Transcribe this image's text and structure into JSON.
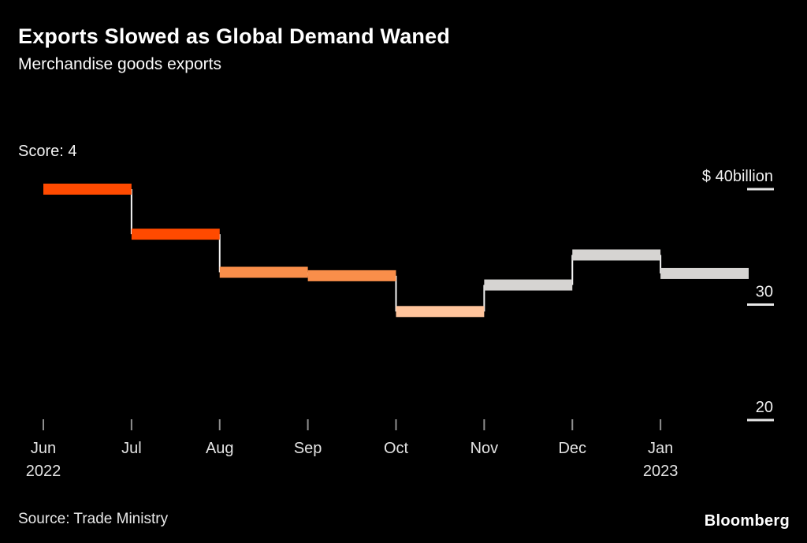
{
  "annotations": {
    "score": "Score: 4"
  },
  "footer": {
    "source": "Source: Trade Ministry"
  },
  "branding": {
    "logo_text": "Bloomberg"
  },
  "chart_data": {
    "type": "line",
    "subtype": "step-after",
    "title": "Exports Slowed as Global Demand Waned",
    "subtitle": "Merchandise goods exports",
    "unit": "$ billion",
    "categories": [
      "Jun 2022",
      "Jul",
      "Aug",
      "Sep",
      "Oct",
      "Nov",
      "Dec",
      "Jan 2023"
    ],
    "x_tick_labels": [
      {
        "label": "Jun",
        "sublabel": "2022"
      },
      {
        "label": "Jul"
      },
      {
        "label": "Aug"
      },
      {
        "label": "Sep"
      },
      {
        "label": "Oct"
      },
      {
        "label": "Nov"
      },
      {
        "label": "Dec"
      },
      {
        "label": "Jan",
        "sublabel": "2023"
      }
    ],
    "values": [
      40.0,
      36.1,
      32.8,
      32.5,
      29.4,
      31.7,
      34.3,
      32.7
    ],
    "segment_colors": [
      "#ff4a00",
      "#ff4a00",
      "#f98e4a",
      "#f98e4a",
      "#ffc49c",
      "#d6d4d2",
      "#d6d4d2",
      "#d6d4d2"
    ],
    "connector_color": "#f5f5f5",
    "yticks": [
      {
        "value": 40,
        "label": "$ 40billion"
      },
      {
        "value": 30,
        "label": "30"
      },
      {
        "value": 20,
        "label": "20"
      }
    ],
    "ylim": [
      18,
      42.5
    ],
    "xlabel": "",
    "ylabel": "",
    "grid": "right-dashes-only",
    "legend": "none"
  }
}
